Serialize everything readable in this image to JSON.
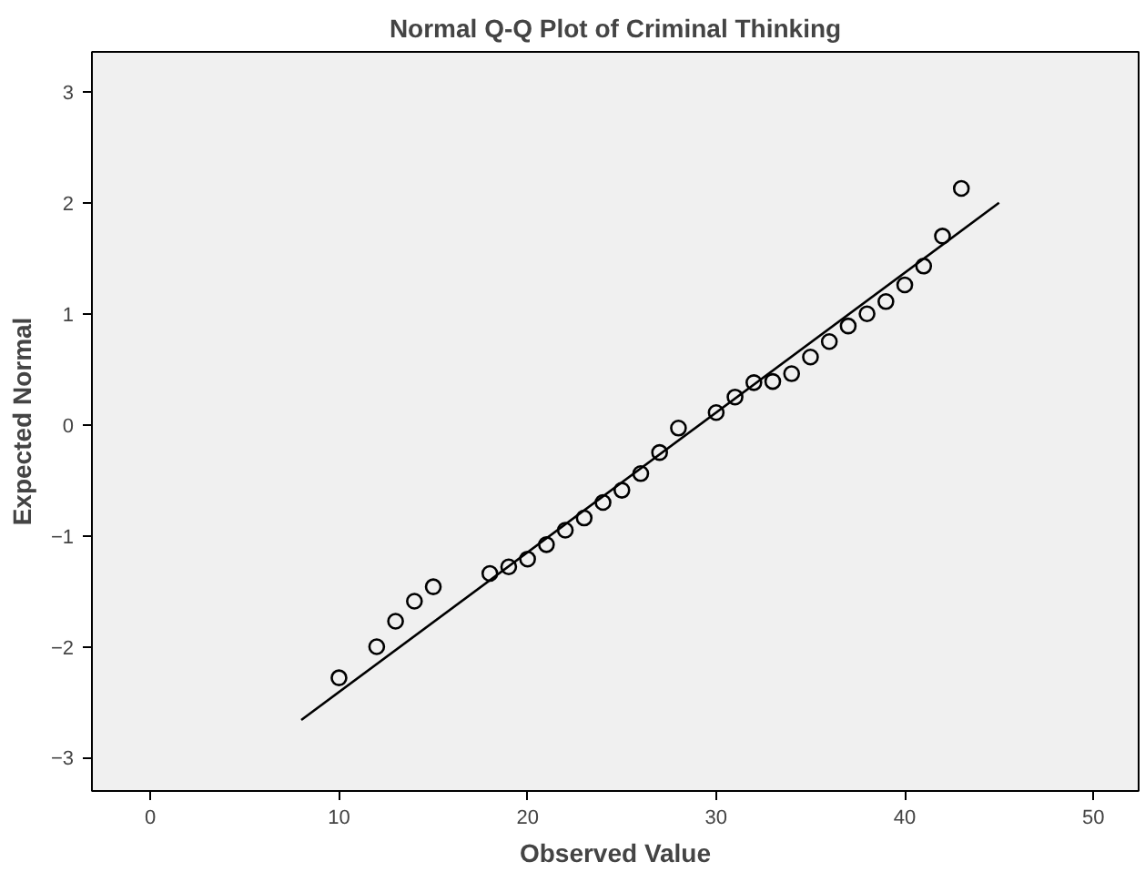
{
  "chart_data": {
    "type": "scatter",
    "title": "Normal Q-Q Plot of Criminal Thinking",
    "xlabel": "Observed Value",
    "ylabel": "Expected Normal",
    "xlim": [
      -3.1,
      52.4
    ],
    "ylim": [
      -3.3,
      3.36
    ],
    "xticks": [
      0,
      10,
      20,
      30,
      40,
      50
    ],
    "yticks": [
      -3,
      -2,
      -1,
      0,
      1,
      2,
      3
    ],
    "grid": false,
    "series": [
      {
        "marker": "circle",
        "color": "#000000",
        "x": [
          10,
          12,
          13,
          14,
          15,
          18,
          19,
          20,
          21,
          22,
          23,
          24,
          25,
          26,
          27,
          28,
          30,
          31,
          32,
          33,
          34,
          35,
          36,
          37,
          38,
          39,
          40,
          41,
          42,
          43
        ],
        "values": [
          -2.28,
          -2.0,
          -1.77,
          -1.59,
          -1.46,
          -1.34,
          -1.28,
          -1.21,
          -1.08,
          -0.95,
          -0.84,
          -0.7,
          -0.59,
          -0.44,
          -0.25,
          -0.03,
          0.11,
          0.25,
          0.38,
          0.39,
          0.46,
          0.61,
          0.75,
          0.89,
          1.0,
          1.11,
          1.26,
          1.43,
          1.7,
          2.13
        ]
      },
      {
        "type": "line",
        "marker": "none",
        "color": "#000000",
        "x": [
          8,
          45
        ],
        "values": [
          -2.66,
          2.0
        ]
      }
    ]
  }
}
